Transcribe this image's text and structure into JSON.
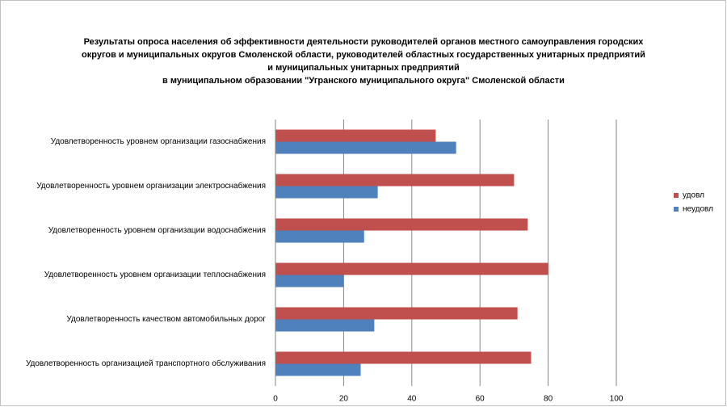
{
  "chart_data": {
    "type": "barh",
    "title": [
      "Результаты опроса населения об эффективности деятельности руководителей органов местного самоуправления городских",
      "округов и муниципальных округов Смоленской области, руководителей областных государственных унитарных предприятий",
      "и муниципальных унитарных предприятий",
      "в муниципальном образовании \"Угранского муниципального округа\" Смоленской области"
    ],
    "categories": [
      "Удовлетворенность уровнем организации газоснабжения",
      "Удовлетворенность уровнем организации электроснабжения",
      "Удовлетворенность уровнем организации водоснабжения",
      "Удовлетворенность уровнем организации теплоснабжения",
      "Удовлетворенность качеством автомобильных дорог",
      "Удовлетворенность организацией транспортного обслуживания"
    ],
    "series": [
      {
        "name": "удовл",
        "color": "#c0504d",
        "values": [
          47,
          70,
          74,
          80,
          71,
          75
        ]
      },
      {
        "name": "неудовл",
        "color": "#4f81bd",
        "values": [
          53,
          30,
          26,
          20,
          29,
          25
        ]
      }
    ],
    "xlim": [
      0,
      100
    ],
    "xticks": [
      0,
      20,
      40,
      60,
      80,
      100
    ],
    "grid": true,
    "legend": "right"
  }
}
